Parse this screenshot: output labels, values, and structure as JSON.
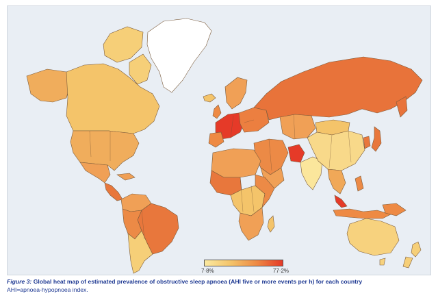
{
  "figure": {
    "label": "Figure 3:",
    "title": "Global heat map of estimated prevalence of obstructive sleep apnoea (AHI five or more events per h) for each country",
    "footnote": "AHI=apnoea-hypopnoea index."
  },
  "legend": {
    "min_label": "7·8%",
    "max_label": "77·2%",
    "min_value": 7.8,
    "max_value": 77.2,
    "color_low": "#fbe9a0",
    "color_mid": "#ee8a44",
    "color_high": "#e53a28"
  },
  "colors": {
    "ocean": "#e9eef4",
    "no_data": "#ffffff",
    "border": "#6b4b30"
  },
  "regions": [
    {
      "name": "Canada",
      "level": "low-mid",
      "color": "#f4c46a"
    },
    {
      "name": "United States",
      "level": "mid",
      "color": "#f0ad5c"
    },
    {
      "name": "Mexico",
      "level": "mid",
      "color": "#f0a056"
    },
    {
      "name": "Greenland",
      "level": "no data",
      "color": "#ffffff"
    },
    {
      "name": "Brazil",
      "level": "high",
      "color": "#e8773c"
    },
    {
      "name": "Argentina",
      "level": "low-mid",
      "color": "#f6cf78"
    },
    {
      "name": "Russia",
      "level": "high",
      "color": "#e8733a"
    },
    {
      "name": "China",
      "level": "low-mid",
      "color": "#f8d98a"
    },
    {
      "name": "India",
      "level": "low",
      "color": "#fbe69c"
    },
    {
      "name": "Australia",
      "level": "low-mid",
      "color": "#f7d27e"
    },
    {
      "name": "Europe",
      "level": "high",
      "color": "#e55a30"
    },
    {
      "name": "Africa",
      "level": "mixed",
      "color": "#ef9a50"
    },
    {
      "name": "Middle East",
      "level": "mid-high",
      "color": "#ec8a46"
    },
    {
      "name": "Southeast Asia",
      "level": "mid",
      "color": "#f0a858"
    }
  ]
}
